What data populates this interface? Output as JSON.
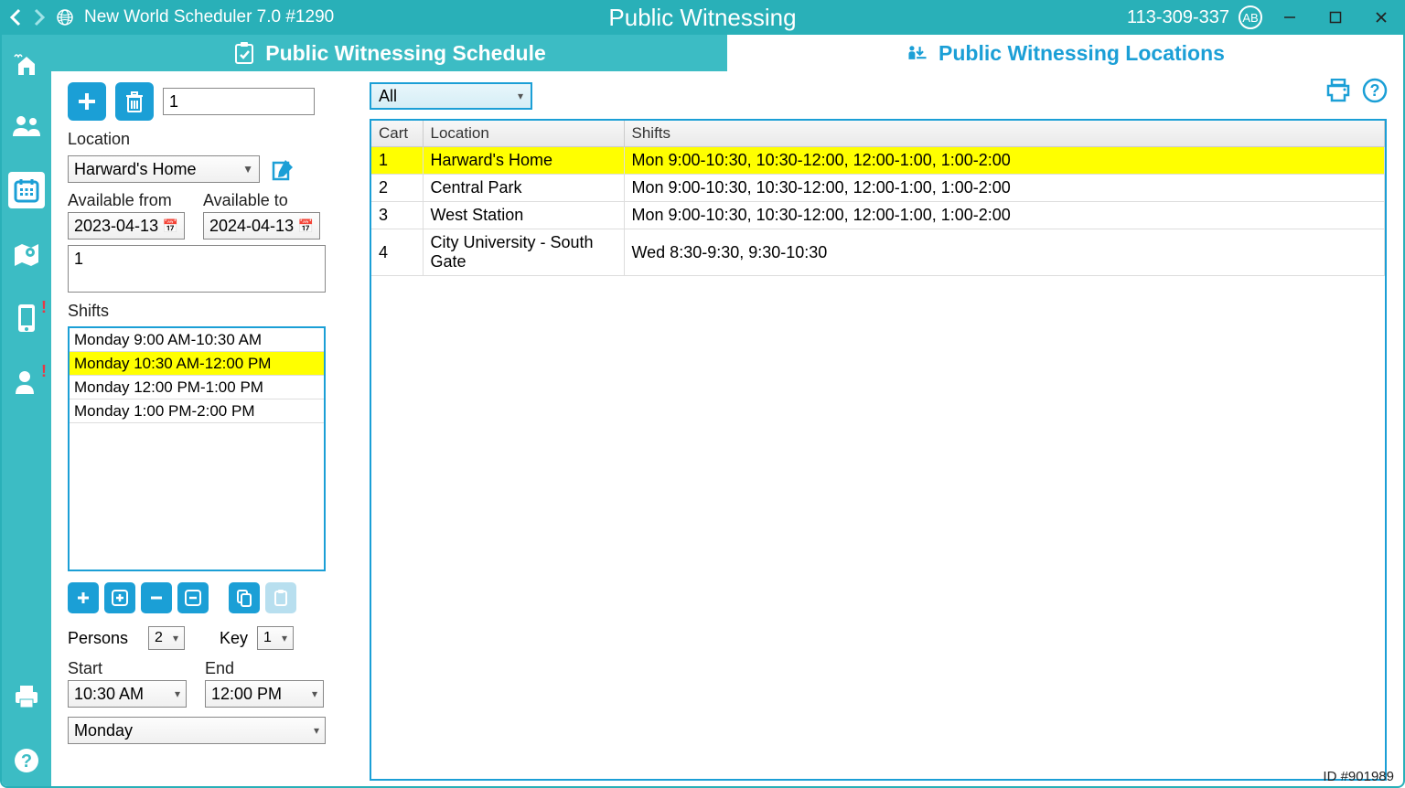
{
  "titlebar": {
    "app_title": "New World Scheduler 7.0 #1290",
    "center_title": "Public Witnessing",
    "phone": "113-309-337",
    "ab_badge": "AB"
  },
  "tabs": {
    "left": "Public Witnessing Schedule",
    "right": "Public Witnessing Locations"
  },
  "form": {
    "cart_number": "1",
    "location_label": "Location",
    "location_value": "Harward's Home",
    "available_from_label": "Available from",
    "available_from": "2023-04-13",
    "available_to_label": "Available to",
    "available_to": "2024-04-13",
    "notes": "1",
    "shifts_label": "Shifts",
    "shifts": [
      {
        "label": "Monday 9:00 AM-10:30 AM",
        "selected": false
      },
      {
        "label": "Monday 10:30 AM-12:00 PM",
        "selected": true
      },
      {
        "label": "Monday 12:00 PM-1:00 PM",
        "selected": false
      },
      {
        "label": "Monday 1:00 PM-2:00 PM",
        "selected": false
      }
    ],
    "persons_label": "Persons",
    "persons_value": "2",
    "key_label": "Key",
    "key_value": "1",
    "start_label": "Start",
    "start_value": "10:30 AM",
    "end_label": "End",
    "end_value": "12:00 PM",
    "day_value": "Monday"
  },
  "filter": {
    "value": "All"
  },
  "grid": {
    "columns": [
      "Cart",
      "Location",
      "Shifts"
    ],
    "rows": [
      {
        "cart": "1",
        "location": "Harward's Home",
        "shifts": "Mon 9:00-10:30, 10:30-12:00, 12:00-1:00, 1:00-2:00",
        "selected": true
      },
      {
        "cart": "2",
        "location": "Central Park",
        "shifts": "Mon 9:00-10:30, 10:30-12:00, 12:00-1:00, 1:00-2:00",
        "selected": false
      },
      {
        "cart": "3",
        "location": "West Station",
        "shifts": "Mon 9:00-10:30, 10:30-12:00, 12:00-1:00, 1:00-2:00",
        "selected": false
      },
      {
        "cart": "4",
        "location": "City University - South Gate",
        "shifts": "Wed 8:30-9:30, 9:30-10:30",
        "selected": false
      }
    ]
  },
  "footer_id": "ID #901989",
  "colors": {
    "brand_teal": "#29b0b8",
    "brand_teal_light": "#3cbcc4",
    "accent_blue": "#1b9fd6",
    "highlight_yellow": "#ffff00",
    "alert_red": "#e63946"
  }
}
